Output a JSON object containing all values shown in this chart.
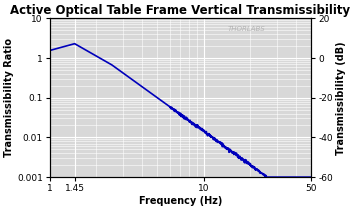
{
  "title": "Active Optical Table Frame Vertical Transmissibility",
  "xlabel": "Frequency (Hz)",
  "ylabel_left": "Transmissibility Ratio",
  "ylabel_right": "Transmissibility (dB)",
  "xlim": [
    1,
    50
  ],
  "ylim_left": [
    0.001,
    10
  ],
  "ylim_right": [
    -60,
    20
  ],
  "yticks_left": [
    0.001,
    0.01,
    0.1,
    1,
    10
  ],
  "yticks_right": [
    -60,
    -40,
    -20,
    0,
    20
  ],
  "xticks": [
    1,
    1.45,
    10,
    50
  ],
  "xticklabels": [
    "1",
    "1.45",
    "10",
    "50"
  ],
  "line_color": "#0000bb",
  "bg_color": "#d8d8d8",
  "grid_color": "#ffffff",
  "watermark": "THORLABS",
  "title_fontsize": 8.5,
  "axis_fontsize": 7,
  "tick_fontsize": 6.5,
  "watermark_fontsize": 5,
  "f0": 1.45,
  "line_width": 1.2
}
